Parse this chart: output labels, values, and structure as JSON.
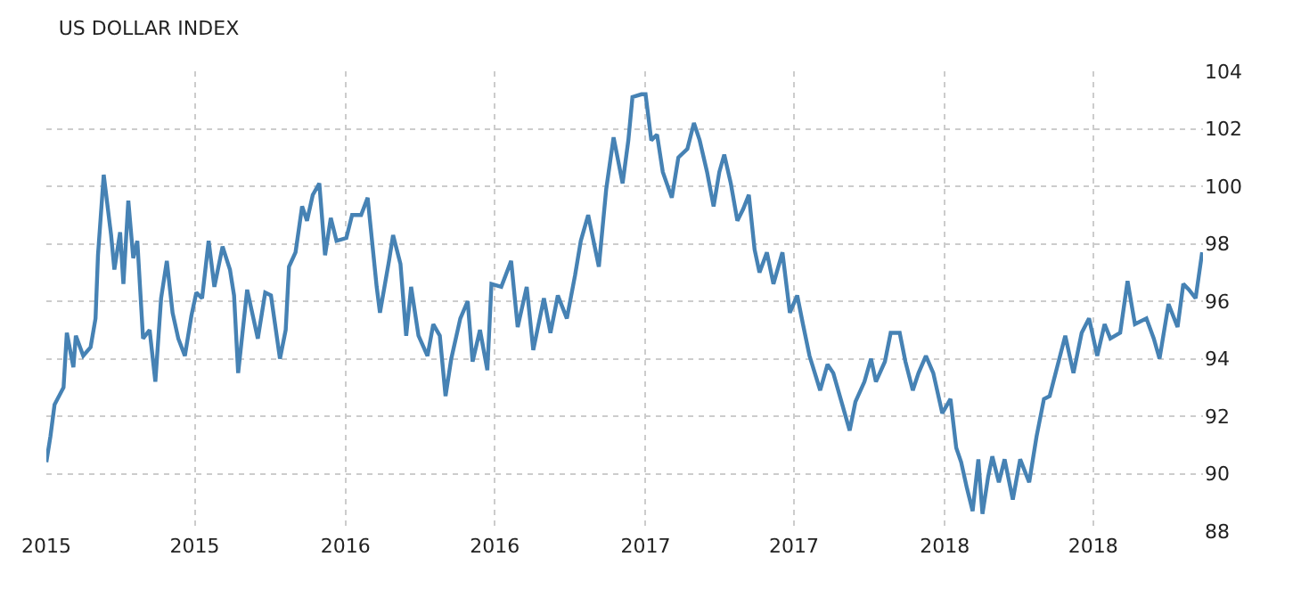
{
  "chart_data": {
    "type": "line",
    "title": "US DOLLAR INDEX",
    "x": [
      "2015-01-01",
      "2015-01-06",
      "2015-01-11",
      "2015-01-22",
      "2015-01-26",
      "2015-02-03",
      "2015-02-06",
      "2015-02-15",
      "2015-02-24",
      "2015-03-02",
      "2015-03-05",
      "2015-03-12",
      "2015-03-21",
      "2015-03-25",
      "2015-04-01",
      "2015-04-05",
      "2015-04-11",
      "2015-04-17",
      "2015-04-22",
      "2015-04-29",
      "2015-05-07",
      "2015-05-14",
      "2015-05-21",
      "2015-05-28",
      "2015-06-04",
      "2015-06-11",
      "2015-06-19",
      "2015-06-27",
      "2015-07-03",
      "2015-07-10",
      "2015-07-18",
      "2015-07-25",
      "2015-08-04",
      "2015-08-13",
      "2015-08-18",
      "2015-08-23",
      "2015-09-03",
      "2015-09-16",
      "2015-09-25",
      "2015-10-02",
      "2015-10-13",
      "2015-10-20",
      "2015-10-24",
      "2015-11-01",
      "2015-11-09",
      "2015-11-15",
      "2015-11-22",
      "2015-11-30",
      "2015-12-07",
      "2015-12-14",
      "2015-12-21",
      "2016-01-02",
      "2016-01-09",
      "2016-01-20",
      "2016-01-28",
      "2016-02-08",
      "2016-02-12",
      "2016-02-23",
      "2016-02-28",
      "2016-03-08",
      "2016-03-15",
      "2016-03-21",
      "2016-03-30",
      "2016-04-10",
      "2016-04-17",
      "2016-04-25",
      "2016-05-02",
      "2016-05-09",
      "2016-05-20",
      "2016-05-29",
      "2016-06-04",
      "2016-06-13",
      "2016-06-22",
      "2016-06-27",
      "2016-07-09",
      "2016-07-21",
      "2016-07-29",
      "2016-08-09",
      "2016-08-17",
      "2016-08-30",
      "2016-09-07",
      "2016-09-16",
      "2016-09-27",
      "2016-10-07",
      "2016-10-14",
      "2016-10-23",
      "2016-11-05",
      "2016-11-14",
      "2016-11-23",
      "2016-12-04",
      "2016-12-11",
      "2016-12-16",
      "2016-12-27",
      "2017-01-01",
      "2017-01-08",
      "2017-01-15",
      "2017-01-22",
      "2017-02-02",
      "2017-02-10",
      "2017-02-21",
      "2017-03-01",
      "2017-03-08",
      "2017-03-17",
      "2017-03-25",
      "2017-04-01",
      "2017-04-07",
      "2017-04-15",
      "2017-04-23",
      "2017-04-30",
      "2017-05-07",
      "2017-05-14",
      "2017-05-20",
      "2017-05-29",
      "2017-06-06",
      "2017-06-17",
      "2017-06-26",
      "2017-07-05",
      "2017-07-12",
      "2017-07-20",
      "2017-08-02",
      "2017-08-11",
      "2017-08-18",
      "2017-08-27",
      "2017-09-07",
      "2017-09-14",
      "2017-09-25",
      "2017-10-03",
      "2017-10-09",
      "2017-10-20",
      "2017-10-27",
      "2017-11-07",
      "2017-11-14",
      "2017-11-23",
      "2017-11-30",
      "2017-12-09",
      "2017-12-18",
      "2017-12-29",
      "2018-01-08",
      "2018-01-15",
      "2018-01-21",
      "2018-01-28",
      "2018-02-04",
      "2018-02-11",
      "2018-02-16",
      "2018-02-23",
      "2018-02-28",
      "2018-03-08",
      "2018-03-15",
      "2018-03-25",
      "2018-04-03",
      "2018-04-14",
      "2018-04-23",
      "2018-05-02",
      "2018-05-09",
      "2018-05-18",
      "2018-05-28",
      "2018-06-07",
      "2018-06-17",
      "2018-06-26",
      "2018-07-06",
      "2018-07-15",
      "2018-07-22",
      "2018-08-03",
      "2018-08-12",
      "2018-08-21",
      "2018-09-04",
      "2018-09-13",
      "2018-09-20",
      "2018-10-01",
      "2018-10-12",
      "2018-10-19",
      "2018-10-26",
      "2018-11-03",
      "2018-11-11"
    ],
    "series": [
      {
        "color": "#4682b4",
        "values": [
          90.4,
          91.3,
          92.4,
          93.0,
          94.9,
          93.7,
          94.8,
          94.1,
          94.4,
          95.4,
          97.6,
          100.4,
          98.3,
          97.1,
          98.4,
          96.6,
          99.5,
          97.5,
          98.1,
          94.7,
          95.0,
          93.2,
          96.1,
          97.4,
          95.6,
          94.7,
          94.1,
          95.5,
          96.3,
          96.1,
          98.1,
          96.5,
          97.9,
          97.1,
          96.2,
          93.5,
          96.4,
          94.7,
          96.3,
          96.2,
          94.0,
          95.0,
          97.2,
          97.7,
          99.3,
          98.8,
          99.7,
          100.1,
          97.6,
          98.9,
          98.1,
          98.2,
          99.0,
          99.0,
          99.6,
          96.5,
          95.6,
          97.4,
          98.3,
          97.3,
          94.8,
          96.5,
          94.8,
          94.1,
          95.2,
          94.8,
          92.7,
          94.0,
          95.4,
          96.0,
          93.9,
          95.0,
          93.6,
          96.6,
          96.5,
          97.4,
          95.1,
          96.5,
          94.3,
          96.1,
          94.9,
          96.2,
          95.4,
          96.9,
          98.1,
          99.0,
          97.2,
          99.9,
          101.7,
          100.1,
          101.6,
          103.1,
          103.2,
          103.2,
          101.6,
          101.8,
          100.5,
          99.6,
          101.0,
          101.3,
          102.2,
          101.6,
          100.5,
          99.3,
          100.5,
          101.1,
          100.1,
          98.8,
          99.2,
          99.7,
          97.8,
          97.0,
          97.7,
          96.6,
          97.7,
          95.6,
          96.2,
          95.2,
          94.1,
          92.9,
          93.8,
          93.5,
          92.6,
          91.5,
          92.5,
          93.2,
          94.0,
          93.2,
          93.9,
          94.9,
          94.9,
          93.9,
          92.9,
          93.5,
          94.1,
          93.5,
          92.1,
          92.6,
          90.9,
          90.4,
          89.5,
          88.7,
          90.5,
          88.6,
          89.9,
          90.6,
          89.7,
          90.5,
          89.1,
          90.5,
          89.7,
          91.3,
          92.6,
          92.7,
          93.7,
          94.8,
          93.5,
          94.9,
          95.4,
          94.1,
          95.2,
          94.7,
          94.9,
          96.7,
          95.2,
          95.4,
          94.7,
          94.0,
          95.9,
          95.1,
          96.6,
          96.4,
          96.1,
          97.7
        ]
      }
    ],
    "xlim": [
      "2015-01-01",
      "2018-11-12"
    ],
    "xticks": [
      {
        "value": "2015-01-01",
        "label": "2015"
      },
      {
        "value": "2015-07-01",
        "label": "2015"
      },
      {
        "value": "2016-01-01",
        "label": "2016"
      },
      {
        "value": "2016-07-01",
        "label": "2016"
      },
      {
        "value": "2017-01-01",
        "label": "2017"
      },
      {
        "value": "2017-07-01",
        "label": "2017"
      },
      {
        "value": "2018-01-01",
        "label": "2018"
      },
      {
        "value": "2018-07-01",
        "label": "2018"
      }
    ],
    "ylim": [
      88,
      104
    ],
    "yticks": [
      88,
      90,
      92,
      94,
      96,
      98,
      100,
      102,
      104
    ],
    "grid": true,
    "line_style": "solid",
    "marker": "none"
  }
}
